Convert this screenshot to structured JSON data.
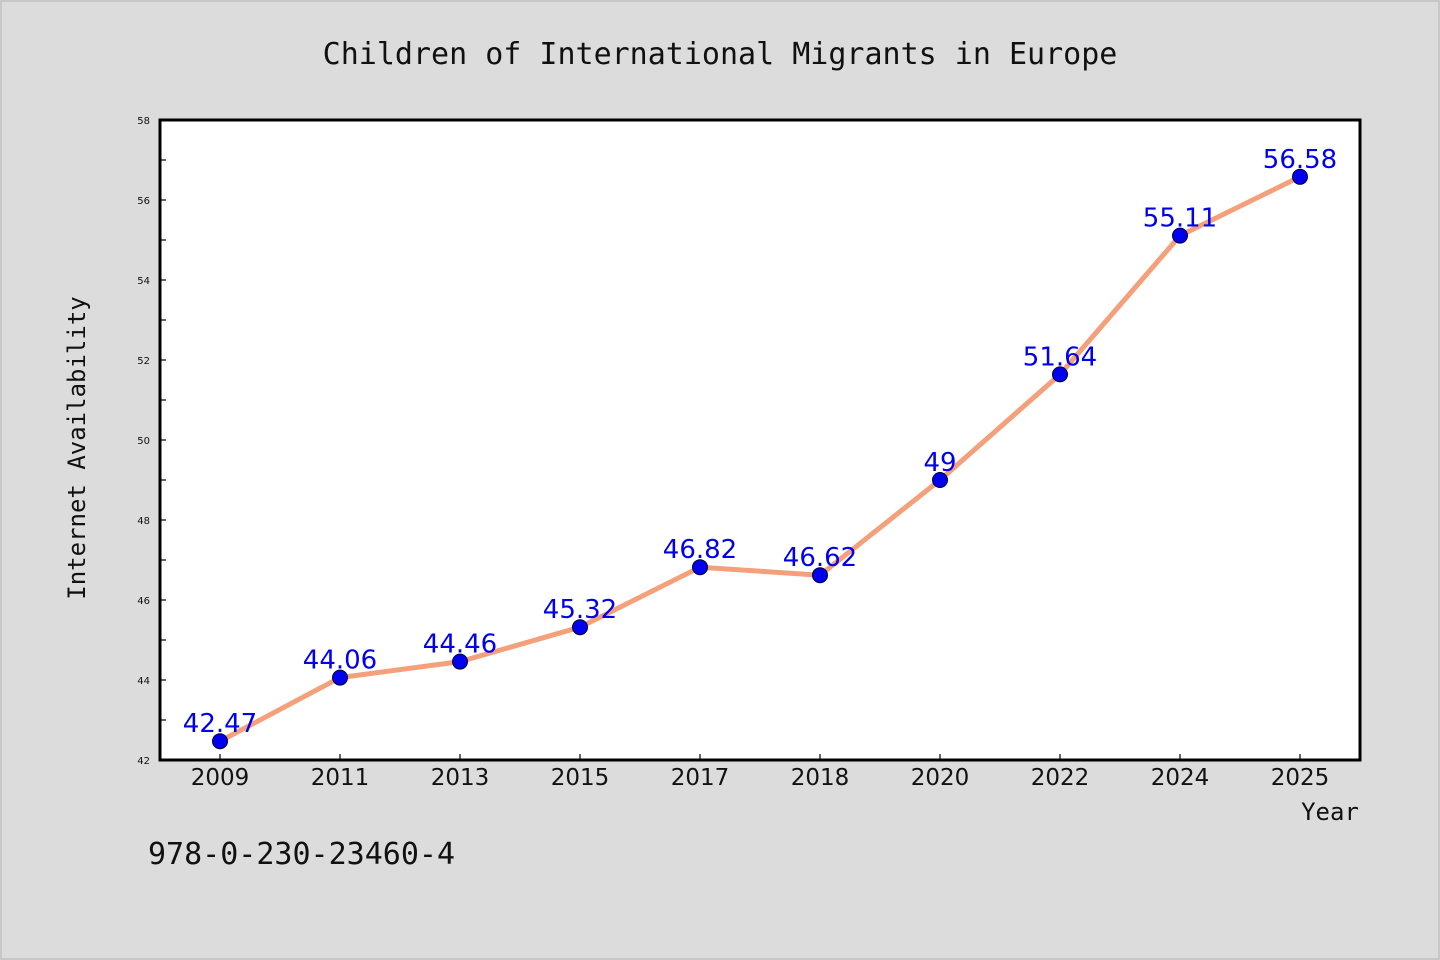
{
  "chart_data": {
    "type": "line",
    "title": "Children of International Migrants in Europe",
    "xlabel": "Year",
    "ylabel": "Internet Availability",
    "categories": [
      "2009",
      "2011",
      "2013",
      "2015",
      "2017",
      "2018",
      "2020",
      "2022",
      "2024",
      "2025"
    ],
    "series": [
      {
        "values": [
          42.47,
          44.06,
          44.46,
          45.32,
          46.82,
          46.62,
          49,
          51.64,
          55.11,
          56.58
        ],
        "line_color": "#f4a07a",
        "marker_color": "#0000ee"
      }
    ],
    "data_labels": [
      "42.47",
      "44.06",
      "44.46",
      "45.32",
      "46.82",
      "46.62",
      "49",
      "51.64",
      "55.11",
      "56.58"
    ],
    "ylim": [
      42,
      58
    ],
    "yticks": [
      "42",
      "44",
      "46",
      "48",
      "50",
      "52",
      "54",
      "56",
      "58"
    ],
    "grid": false,
    "legend": "none"
  },
  "footer": {
    "isbn": "978-0-230-23460-4"
  }
}
